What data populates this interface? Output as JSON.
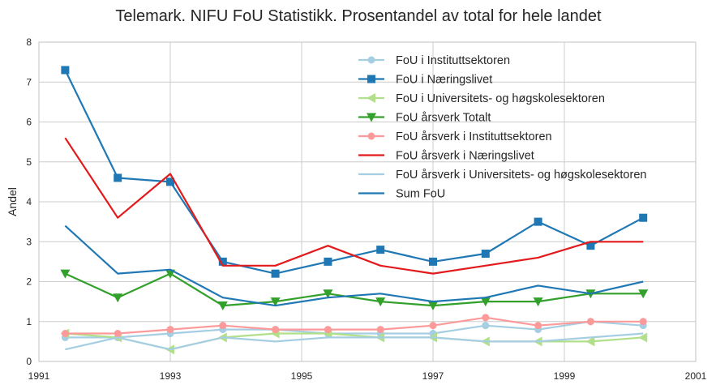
{
  "chart_data": {
    "type": "line",
    "title": "Telemark. NIFU FoU Statistikk. Prosentandel av total for hele landet",
    "xlabel": "",
    "ylabel": "Andel",
    "xlim": [
      1991,
      2001
    ],
    "ylim": [
      0,
      8
    ],
    "xticks": [
      "1991",
      "1993",
      "1995",
      "1997",
      "1999",
      "2001"
    ],
    "yticks": [
      "0",
      "1",
      "2",
      "3",
      "4",
      "5",
      "6",
      "7",
      "8"
    ],
    "grid": true,
    "legend_position": "top-right",
    "x": [
      1991.4,
      1992.2,
      1993.0,
      1993.8,
      1994.6,
      1995.4,
      1996.2,
      1997.0,
      1997.8,
      1998.6,
      1999.4,
      2000.2
    ],
    "series": [
      {
        "name": "FoU i Instituttsektoren",
        "color": "#a6cee3",
        "marker": "circle",
        "values": [
          0.6,
          0.6,
          0.7,
          0.8,
          0.8,
          0.7,
          0.7,
          0.7,
          0.9,
          0.8,
          1.0,
          0.9
        ]
      },
      {
        "name": "FoU i Næringslivet",
        "color": "#1f78b4",
        "marker": "square",
        "values": [
          7.3,
          4.6,
          4.5,
          2.5,
          2.2,
          2.5,
          2.8,
          2.5,
          2.7,
          3.5,
          2.9,
          3.6
        ]
      },
      {
        "name": "FoU i Universitets- og høgskolesektoren",
        "color": "#b2df8a",
        "marker": "triangle-left",
        "values": [
          0.7,
          0.6,
          0.3,
          0.6,
          0.7,
          0.7,
          0.6,
          0.6,
          0.5,
          0.5,
          0.5,
          0.6
        ]
      },
      {
        "name": "FoU årsverk Totalt",
        "color": "#33a02c",
        "marker": "triangle-down",
        "values": [
          2.2,
          1.6,
          2.2,
          1.4,
          1.5,
          1.7,
          1.5,
          1.4,
          1.5,
          1.5,
          1.7,
          1.7
        ]
      },
      {
        "name": "FoU årsverk i Instituttsektoren",
        "color": "#fb9a99",
        "marker": "circle",
        "values": [
          0.7,
          0.7,
          0.8,
          0.9,
          0.8,
          0.8,
          0.8,
          0.9,
          1.1,
          0.9,
          1.0,
          1.0
        ]
      },
      {
        "name": "FoU årsverk i Næringslivet",
        "color": "#e31a1c",
        "marker": "none",
        "values": [
          5.6,
          3.6,
          4.7,
          2.4,
          2.4,
          2.9,
          2.4,
          2.2,
          2.4,
          2.6,
          3.0,
          3.0
        ]
      },
      {
        "name": "FoU årsverk i Universitets- og høgskolesektoren",
        "color": "#a6cee3",
        "marker": "none",
        "values": [
          0.3,
          0.6,
          0.3,
          0.6,
          0.5,
          0.6,
          0.6,
          0.6,
          0.5,
          0.5,
          0.6,
          0.7
        ]
      },
      {
        "name": "Sum FoU",
        "color": "#1f78b4",
        "marker": "none",
        "values": [
          3.4,
          2.2,
          2.3,
          1.6,
          1.4,
          1.6,
          1.7,
          1.5,
          1.6,
          1.9,
          1.7,
          2.0
        ]
      }
    ]
  }
}
